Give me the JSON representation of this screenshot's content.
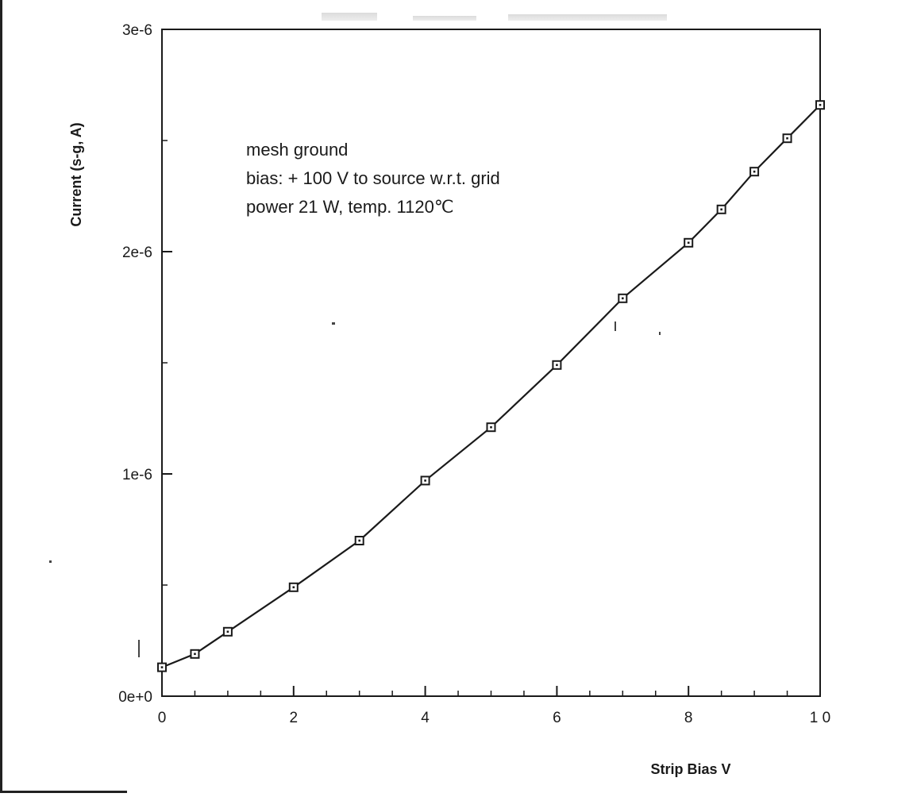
{
  "chart_data": {
    "type": "line",
    "title": "",
    "xlabel": "Strip Bias V",
    "ylabel": "Current   (s-g,   A)",
    "xlim": [
      0,
      10
    ],
    "ylim": [
      0,
      3e-06
    ],
    "x_major_ticks": [
      0,
      2,
      4,
      6,
      8,
      10
    ],
    "x_tick_labels": [
      "0",
      "2",
      "4",
      "6",
      "8",
      "1 0"
    ],
    "x_minor_step": 0.5,
    "y_major_ticks": [
      0,
      1e-06,
      2e-06,
      3e-06
    ],
    "y_tick_labels": [
      "0e+0",
      "1e-6",
      "2e-6",
      "3e-6"
    ],
    "y_minor_step": 5e-07,
    "grid": false,
    "legend": "none",
    "marker": "square-with-dot",
    "line_color": "#1a1a1a",
    "series": [
      {
        "x": [
          0,
          0.5,
          1,
          2,
          3,
          4,
          5,
          6,
          7,
          8,
          8.5,
          9,
          9.5,
          10
        ],
        "y": [
          1.3e-07,
          1.9e-07,
          2.9e-07,
          4.9e-07,
          7e-07,
          9.7e-07,
          1.21e-06,
          1.49e-06,
          1.79e-06,
          2.04e-06,
          2.19e-06,
          2.36e-06,
          2.51e-06,
          2.66e-06
        ]
      }
    ],
    "annotations": [
      "mesh ground",
      "bias: + 100 V to source w.r.t. grid",
      "power 21 W, temp. 1120℃"
    ]
  }
}
